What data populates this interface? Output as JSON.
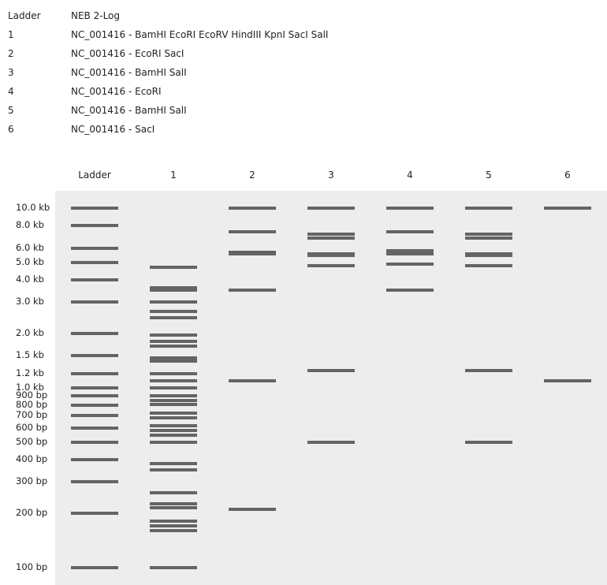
{
  "legend": [
    {
      "key": "Ladder",
      "desc": "NEB 2-Log"
    },
    {
      "key": "1",
      "desc": "NC_001416 - BamHI EcoRI EcoRV HindIII KpnI SacI SalI"
    },
    {
      "key": "2",
      "desc": "NC_001416 - EcoRI SacI"
    },
    {
      "key": "3",
      "desc": "NC_001416 - BamHI SalI"
    },
    {
      "key": "4",
      "desc": "NC_001416 - EcoRI"
    },
    {
      "key": "5",
      "desc": "NC_001416 - BamHI SalI"
    },
    {
      "key": "6",
      "desc": "NC_001416 - SacI"
    }
  ],
  "lanes": [
    "Ladder",
    "1",
    "2",
    "3",
    "4",
    "5",
    "6"
  ],
  "markers": [
    "10.0 kb",
    "8.0 kb",
    "6.0 kb",
    "5.0 kb",
    "4.0 kb",
    "3.0 kb",
    "2.0 kb",
    "1.5 kb",
    "1.2 kb",
    "1.0 kb",
    "900 bp",
    "800 bp",
    "700 bp",
    "600 bp",
    "500 bp",
    "400 bp",
    "300 bp",
    "200 bp",
    "100 bp"
  ],
  "bands_bp": [
    [
      10000,
      8000,
      6000,
      5000,
      4000,
      3000,
      2000,
      1500,
      1200,
      1000,
      900,
      800,
      700,
      600,
      500,
      400,
      300,
      200,
      100
    ],
    [
      4700,
      3600,
      3500,
      3000,
      2650,
      2450,
      1950,
      1800,
      1700,
      1450,
      1400,
      1200,
      1100,
      1000,
      900,
      850,
      810,
      720,
      680,
      620,
      580,
      550,
      500,
      380,
      350,
      260,
      225,
      215,
      180,
      170,
      160,
      100
    ],
    [
      10000,
      7400,
      5700,
      5600,
      3500,
      1100,
      210
    ],
    [
      10000,
      7200,
      6800,
      5600,
      5500,
      4800,
      1250,
      500
    ],
    [
      10000,
      7400,
      5800,
      5600,
      4900,
      3500
    ],
    [
      10000,
      7200,
      6800,
      5600,
      5500,
      4800,
      1250,
      500
    ],
    [
      10000,
      1100
    ]
  ]
}
